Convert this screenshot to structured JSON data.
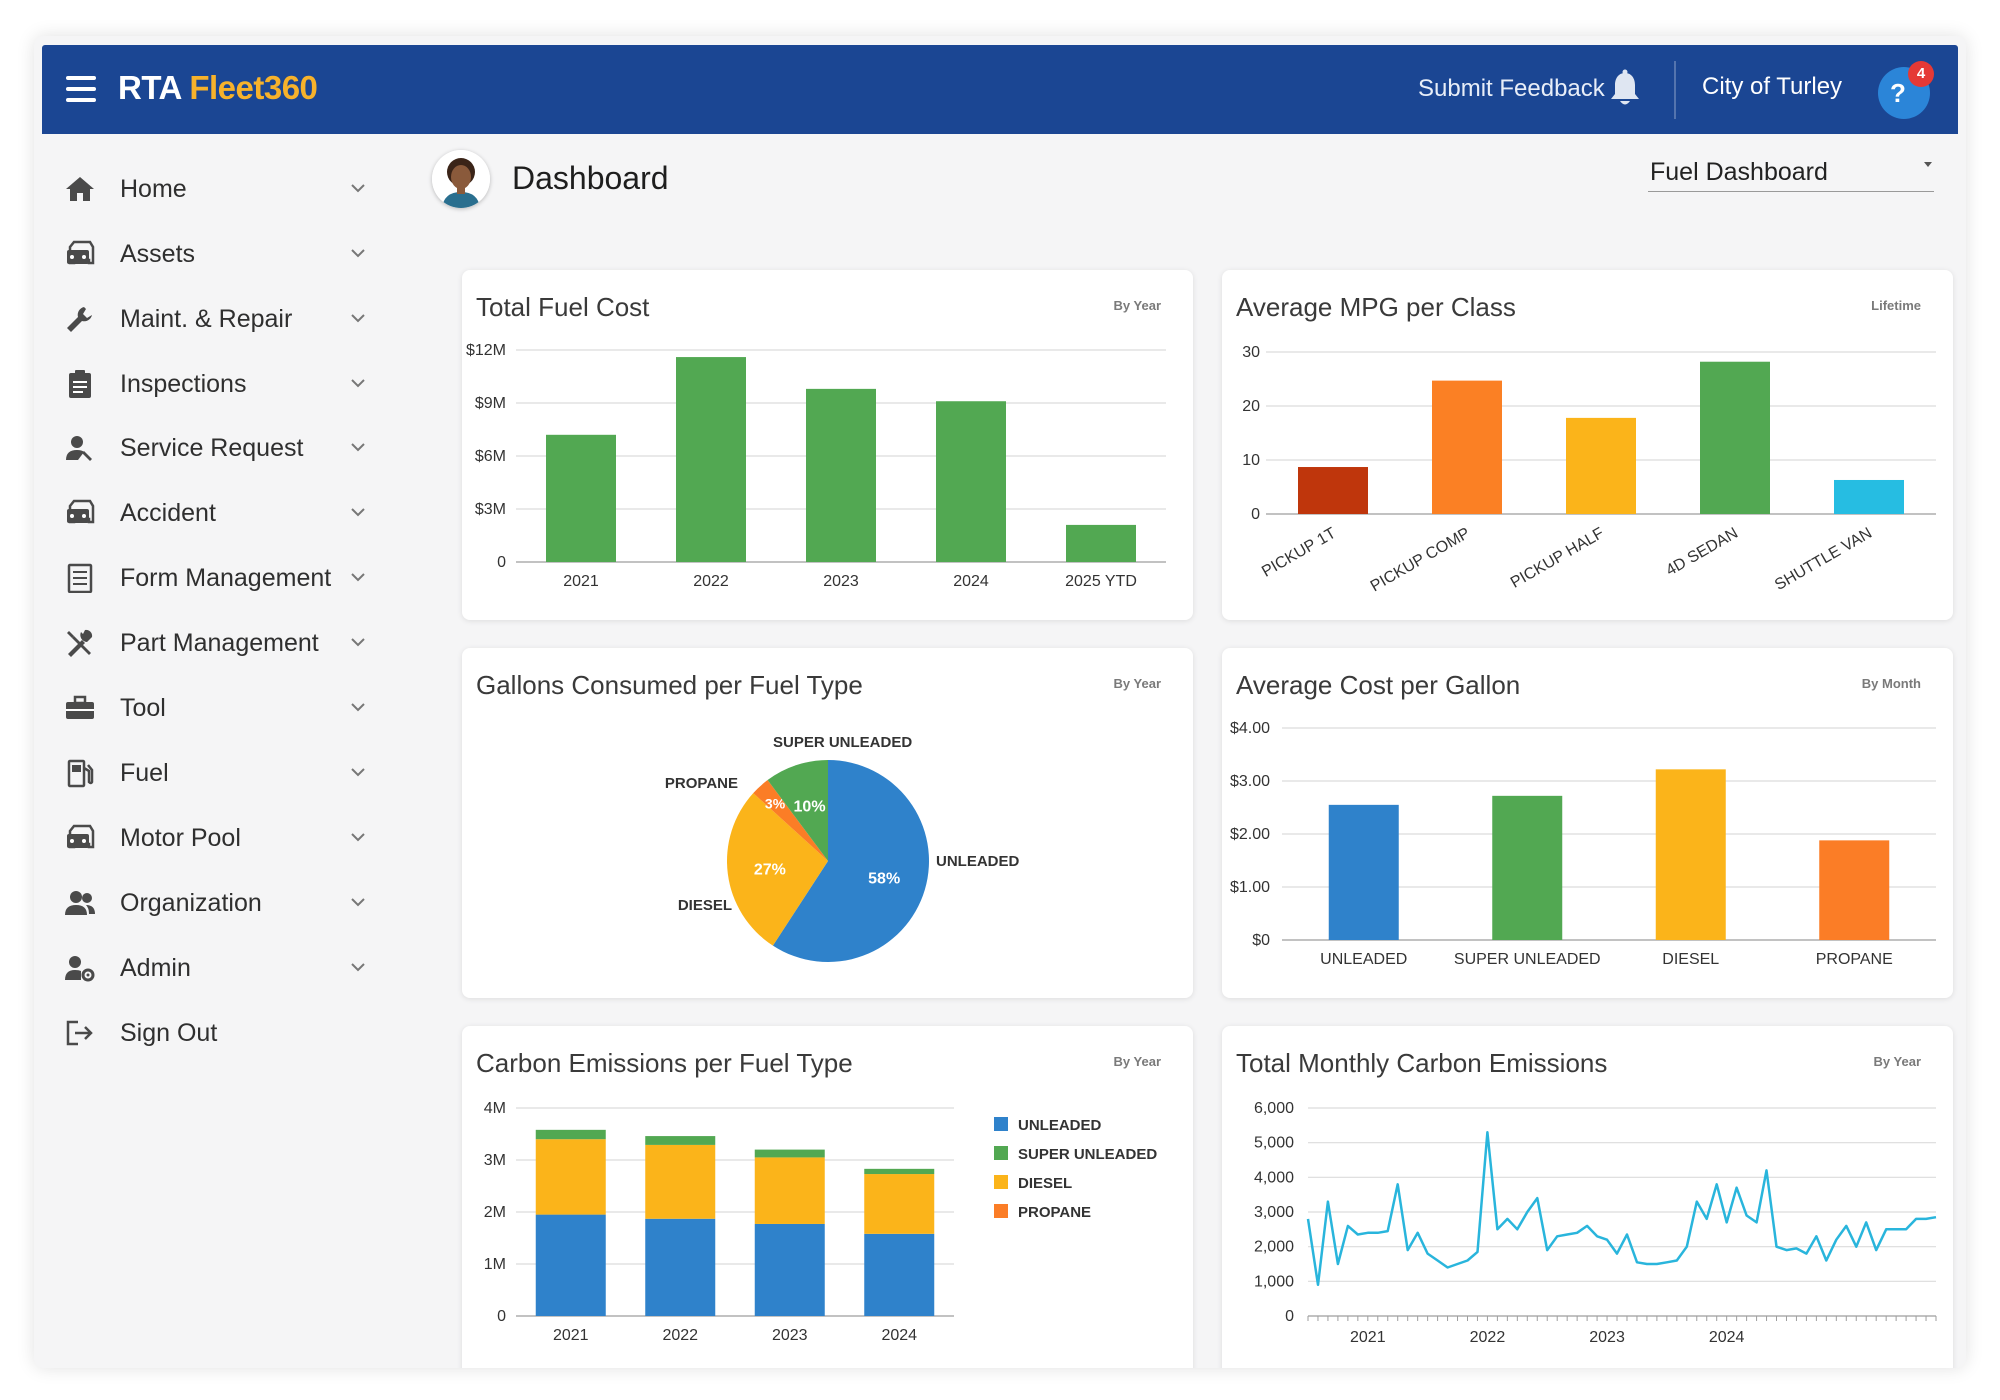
{
  "header": {
    "logo_a": "RTA",
    "logo_b": "Fleet360",
    "feedback_label": "Submit Feedback",
    "org_name": "City of Turley",
    "notification_count": "4",
    "color_brand": "#1b4693",
    "color_accent": "#f7b22b"
  },
  "sidebar": {
    "items": [
      {
        "label": "Home",
        "icon": "home-icon"
      },
      {
        "label": "Assets",
        "icon": "car-icon"
      },
      {
        "label": "Maint. & Repair",
        "icon": "wrench-icon"
      },
      {
        "label": "Inspections",
        "icon": "clipboard-icon"
      },
      {
        "label": "Service Request",
        "icon": "user-wrench-icon"
      },
      {
        "label": "Accident",
        "icon": "car-icon"
      },
      {
        "label": "Form Management",
        "icon": "form-icon"
      },
      {
        "label": "Part Management",
        "icon": "tools-icon"
      },
      {
        "label": "Tool",
        "icon": "toolbox-icon"
      },
      {
        "label": "Fuel",
        "icon": "fuel-pump-icon"
      },
      {
        "label": "Motor Pool",
        "icon": "car-icon"
      },
      {
        "label": "Organization",
        "icon": "group-icon"
      },
      {
        "label": "Admin",
        "icon": "admin-gear-icon"
      },
      {
        "label": "Sign Out",
        "icon": "sign-out-icon"
      }
    ]
  },
  "main": {
    "title": "Dashboard",
    "dashboard_select": "Fuel Dashboard"
  },
  "cards": {
    "fuel_cost": {
      "title": "Total Fuel Cost",
      "period": "By Year"
    },
    "mpg": {
      "title": "Average MPG per Class",
      "period": "Lifetime"
    },
    "gallons": {
      "title": "Gallons Consumed per Fuel Type",
      "period": "By Year"
    },
    "cost_gallon": {
      "title": "Average Cost per Gallon",
      "period": "By Month"
    },
    "carbon_type": {
      "title": "Carbon Emissions per Fuel Type",
      "period": "By Year"
    },
    "carbon_monthly": {
      "title": "Total Monthly Carbon Emissions",
      "period": "By Year"
    }
  },
  "chart_data": [
    {
      "id": "fuel_cost",
      "type": "bar",
      "categories": [
        "2021",
        "2022",
        "2023",
        "2024",
        "2025 YTD"
      ],
      "values": [
        7.2,
        11.6,
        9.8,
        9.1,
        2.1
      ],
      "ylim": [
        0,
        12
      ],
      "ytick_values": [
        0,
        3,
        6,
        9,
        12
      ],
      "ytick_labels": [
        "0",
        "$3M",
        "$6M",
        "$9M",
        "$12M"
      ],
      "color": "#52a852",
      "grid": true
    },
    {
      "id": "mpg",
      "type": "bar",
      "categories": [
        "PICKUP 1T",
        "PICKUP COMP",
        "PICKUP HALF",
        "4D SEDAN",
        "SHUTTLE VAN"
      ],
      "values": [
        8.7,
        24.7,
        17.8,
        28.2,
        6.3
      ],
      "colors": [
        "#bf360c",
        "#fb8024",
        "#fbb41a",
        "#52a852",
        "#26bde2"
      ],
      "ylim": [
        0,
        30
      ],
      "ytick_values": [
        0,
        10,
        20,
        30
      ],
      "ytick_labels": [
        "0",
        "10",
        "20",
        "30"
      ],
      "grid": true
    },
    {
      "id": "gallons",
      "type": "pie",
      "slices": [
        {
          "label": "UNLEADED",
          "value": 58,
          "pct_label": "58%",
          "color": "#2f82cb"
        },
        {
          "label": "DIESEL",
          "value": 27,
          "pct_label": "27%",
          "color": "#fbb41a"
        },
        {
          "label": "PROPANE",
          "value": 3,
          "pct_label": "3%",
          "color": "#fb7d26"
        },
        {
          "label": "SUPER UNLEADED",
          "value": 10,
          "pct_label": "10%",
          "color": "#52a852"
        }
      ]
    },
    {
      "id": "cost_gallon",
      "type": "bar",
      "categories": [
        "UNLEADED",
        "SUPER UNLEADED",
        "DIESEL",
        "PROPANE"
      ],
      "values": [
        2.55,
        2.72,
        3.22,
        1.88
      ],
      "colors": [
        "#2f82cb",
        "#52a852",
        "#fbb41a",
        "#fb7d26"
      ],
      "ylim": [
        0,
        4
      ],
      "ytick_values": [
        0,
        1,
        2,
        3,
        4
      ],
      "ytick_labels": [
        "$0",
        "$1.00",
        "$2.00",
        "$3.00",
        "$4.00"
      ],
      "grid": true
    },
    {
      "id": "carbon_type",
      "type": "bar",
      "stacked": true,
      "categories": [
        "2021",
        "2022",
        "2023",
        "2024"
      ],
      "series": [
        {
          "name": "UNLEADED",
          "values": [
            1.95,
            1.87,
            1.77,
            1.58
          ],
          "color": "#2f82cb"
        },
        {
          "name": "SUPER UNLEADED",
          "values": [
            0.18,
            0.17,
            0.15,
            0.1
          ],
          "color": "#52a852"
        },
        {
          "name": "DIESEL",
          "values": [
            1.45,
            1.42,
            1.28,
            1.15
          ],
          "color": "#fbb41a"
        },
        {
          "name": "PROPANE",
          "values": [
            0,
            0,
            0,
            0
          ],
          "color": "#fb7d26"
        }
      ],
      "ylim": [
        0,
        4
      ],
      "ytick_values": [
        0,
        1,
        2,
        3,
        4
      ],
      "ytick_labels": [
        "0",
        "1M",
        "2M",
        "3M",
        "4M"
      ],
      "legend": "right",
      "grid": true
    },
    {
      "id": "carbon_monthly",
      "type": "line",
      "x_labels": [
        "2021",
        "2022",
        "2023",
        "2024"
      ],
      "values": [
        2800,
        900,
        3300,
        1500,
        2600,
        2350,
        2400,
        2400,
        2450,
        3800,
        1900,
        2400,
        1800,
        1600,
        1400,
        1500,
        1600,
        1850,
        5300,
        2500,
        2800,
        2500,
        3000,
        3400,
        1900,
        2300,
        2350,
        2400,
        2600,
        2300,
        2200,
        1800,
        2350,
        1550,
        1500,
        1500,
        1550,
        1600,
        2000,
        3300,
        2800,
        3800,
        2700,
        3700,
        2900,
        2700,
        4200,
        2000,
        1900,
        1950,
        1800,
        2300,
        1600,
        2200,
        2600,
        2000,
        2700,
        1900,
        2500,
        2500,
        2500,
        2800,
        2800,
        2850
      ],
      "ylim": [
        0,
        6000
      ],
      "ytick_values": [
        0,
        1000,
        2000,
        3000,
        4000,
        5000,
        6000
      ],
      "ytick_labels": [
        "0",
        "1,000",
        "2,000",
        "3,000",
        "4,000",
        "5,000",
        "6,000"
      ],
      "color": "#29b5dc",
      "grid": true
    }
  ]
}
